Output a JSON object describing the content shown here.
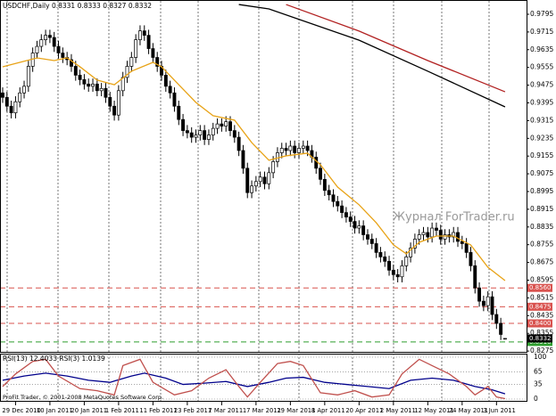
{
  "chart_data": [
    {
      "type": "candlestick",
      "title": "USDCHF,Daily 0.8331 0.8333 0.8327 0.8332",
      "open": [
        0.944,
        0.942,
        0.938,
        0.935,
        0.94,
        0.944,
        0.947,
        0.956,
        0.962,
        0.965,
        0.968,
        0.97,
        0.969,
        0.965,
        0.962,
        0.96,
        0.959,
        0.956,
        0.952,
        0.95,
        0.948,
        0.947,
        0.948,
        0.945,
        0.946,
        0.942,
        0.938,
        0.934,
        0.945,
        0.951,
        0.956,
        0.96,
        0.968,
        0.972,
        0.97,
        0.964,
        0.96,
        0.956,
        0.952,
        0.947,
        0.944,
        0.938,
        0.932,
        0.927,
        0.926,
        0.924,
        0.925,
        0.927,
        0.923,
        0.925,
        0.928,
        0.93,
        0.929,
        0.931,
        0.927,
        0.924,
        0.918,
        0.91,
        0.899,
        0.902,
        0.904,
        0.906,
        0.903,
        0.908,
        0.913,
        0.917,
        0.919,
        0.918,
        0.92,
        0.917,
        0.919,
        0.92,
        0.918,
        0.915,
        0.91,
        0.905,
        0.9,
        0.898,
        0.895,
        0.893,
        0.89,
        0.888,
        0.886,
        0.883,
        0.884,
        0.88,
        0.878,
        0.876,
        0.872,
        0.87,
        0.868,
        0.864,
        0.862,
        0.861,
        0.866,
        0.87,
        0.874,
        0.878,
        0.88,
        0.881,
        0.879,
        0.883,
        0.882,
        0.878,
        0.88,
        0.879,
        0.881,
        0.877,
        0.876,
        0.872,
        0.866,
        0.856,
        0.85,
        0.848,
        0.852,
        0.844,
        0.84,
        0.8331
      ],
      "high": [
        0.9465,
        0.9445,
        0.9405,
        0.9425,
        0.9465,
        0.9495,
        0.9585,
        0.9645,
        0.9675,
        0.9705,
        0.9725,
        0.9725,
        0.9715,
        0.9675,
        0.9645,
        0.9625,
        0.9615,
        0.9585,
        0.9545,
        0.9525,
        0.9505,
        0.9505,
        0.9505,
        0.9485,
        0.9485,
        0.9445,
        0.9405,
        0.9475,
        0.9535,
        0.9585,
        0.9625,
        0.9705,
        0.9745,
        0.9745,
        0.9725,
        0.9665,
        0.9625,
        0.9585,
        0.9545,
        0.9495,
        0.9465,
        0.9405,
        0.9345,
        0.9295,
        0.9285,
        0.9275,
        0.9295,
        0.9295,
        0.9275,
        0.9305,
        0.9325,
        0.9325,
        0.9335,
        0.9335,
        0.9295,
        0.9265,
        0.9205,
        0.9125,
        0.9045,
        0.9065,
        0.9085,
        0.9085,
        0.9105,
        0.9155,
        0.9195,
        0.9215,
        0.9215,
        0.9225,
        0.9225,
        0.9215,
        0.9225,
        0.9225,
        0.9205,
        0.9175,
        0.9125,
        0.9075,
        0.9025,
        0.9005,
        0.8975,
        0.8955,
        0.8925,
        0.8905,
        0.8885,
        0.8865,
        0.8865,
        0.8825,
        0.8805,
        0.8785,
        0.8745,
        0.8725,
        0.8705,
        0.8665,
        0.8645,
        0.8685,
        0.8725,
        0.8765,
        0.8805,
        0.8825,
        0.8835,
        0.8835,
        0.8855,
        0.8855,
        0.8845,
        0.8825,
        0.8825,
        0.8835,
        0.8835,
        0.8795,
        0.8785,
        0.8745,
        0.8685,
        0.8585,
        0.8525,
        0.8545,
        0.8545,
        0.8465,
        0.8425,
        0.8333
      ],
      "low": [
        0.9395,
        0.9355,
        0.9325,
        0.9325,
        0.9375,
        0.9415,
        0.9445,
        0.9535,
        0.9595,
        0.9625,
        0.9655,
        0.9665,
        0.9625,
        0.9595,
        0.9575,
        0.9565,
        0.9535,
        0.9495,
        0.9475,
        0.9455,
        0.9445,
        0.9445,
        0.9425,
        0.9425,
        0.9395,
        0.9355,
        0.9315,
        0.9315,
        0.9425,
        0.9485,
        0.9535,
        0.9575,
        0.9655,
        0.9675,
        0.9615,
        0.9575,
        0.9535,
        0.9495,
        0.9445,
        0.9415,
        0.9355,
        0.9295,
        0.9245,
        0.9235,
        0.9215,
        0.9215,
        0.9225,
        0.9205,
        0.9205,
        0.9225,
        0.9255,
        0.9265,
        0.9265,
        0.9245,
        0.9215,
        0.9155,
        0.9075,
        0.8965,
        0.8965,
        0.8995,
        0.9015,
        0.9005,
        0.9005,
        0.9055,
        0.9105,
        0.9145,
        0.9155,
        0.9155,
        0.9145,
        0.9145,
        0.9165,
        0.9155,
        0.9125,
        0.9075,
        0.9025,
        0.8975,
        0.8955,
        0.8925,
        0.8905,
        0.8875,
        0.8855,
        0.8835,
        0.8805,
        0.8805,
        0.8775,
        0.8755,
        0.8735,
        0.8695,
        0.8675,
        0.8655,
        0.8615,
        0.8595,
        0.8585,
        0.8585,
        0.8635,
        0.8675,
        0.8715,
        0.8755,
        0.8775,
        0.8765,
        0.8765,
        0.8795,
        0.8755,
        0.8755,
        0.8765,
        0.8765,
        0.8745,
        0.8735,
        0.8695,
        0.8635,
        0.8535,
        0.8475,
        0.8455,
        0.8455,
        0.8415,
        0.8375,
        0.8325,
        0.8327
      ],
      "close": [
        0.942,
        0.938,
        0.935,
        0.94,
        0.944,
        0.947,
        0.956,
        0.962,
        0.965,
        0.968,
        0.97,
        0.969,
        0.965,
        0.962,
        0.96,
        0.959,
        0.956,
        0.952,
        0.95,
        0.948,
        0.947,
        0.948,
        0.945,
        0.946,
        0.942,
        0.938,
        0.934,
        0.945,
        0.951,
        0.956,
        0.96,
        0.968,
        0.972,
        0.97,
        0.964,
        0.96,
        0.956,
        0.952,
        0.947,
        0.944,
        0.938,
        0.932,
        0.927,
        0.926,
        0.924,
        0.925,
        0.927,
        0.923,
        0.925,
        0.928,
        0.93,
        0.929,
        0.931,
        0.927,
        0.924,
        0.918,
        0.91,
        0.899,
        0.902,
        0.904,
        0.906,
        0.903,
        0.908,
        0.913,
        0.917,
        0.919,
        0.918,
        0.92,
        0.917,
        0.919,
        0.92,
        0.918,
        0.915,
        0.91,
        0.905,
        0.9,
        0.898,
        0.895,
        0.893,
        0.89,
        0.888,
        0.886,
        0.883,
        0.884,
        0.88,
        0.878,
        0.876,
        0.872,
        0.87,
        0.868,
        0.864,
        0.862,
        0.861,
        0.866,
        0.87,
        0.874,
        0.878,
        0.88,
        0.881,
        0.879,
        0.883,
        0.882,
        0.878,
        0.88,
        0.879,
        0.881,
        0.877,
        0.876,
        0.872,
        0.866,
        0.856,
        0.85,
        0.848,
        0.852,
        0.844,
        0.84,
        0.835,
        0.8332
      ],
      "lines": [
        {
          "color": "#e8a317",
          "x": [
            0,
            4,
            8,
            12,
            15,
            18,
            22,
            26,
            30,
            35,
            37,
            41,
            45,
            49,
            54,
            58,
            62,
            66,
            71,
            74,
            78,
            83,
            87,
            91,
            94,
            97,
            101,
            105,
            109,
            113,
            117
          ],
          "values": [
            0.9558,
            0.9578,
            0.9598,
            0.9586,
            0.9598,
            0.9558,
            0.9498,
            0.9477,
            0.9538,
            0.9578,
            0.9558,
            0.9477,
            0.9397,
            0.9337,
            0.9317,
            0.9216,
            0.9136,
            0.9156,
            0.9168,
            0.9116,
            0.9015,
            0.8935,
            0.8854,
            0.8754,
            0.8714,
            0.8766,
            0.8794,
            0.8794,
            0.8754,
            0.8653,
            0.8593
          ]
        },
        {
          "color": "#b22222",
          "x": [
            66,
            83,
            99,
            117
          ],
          "values": [
            0.9839,
            0.9719,
            0.9586,
            0.9445
          ]
        },
        {
          "color": "#000000",
          "x": [
            55,
            62,
            83,
            99,
            117
          ],
          "values": [
            0.9839,
            0.9819,
            0.9678,
            0.9538,
            0.9377
          ]
        }
      ],
      "hlines": [
        {
          "value": 0.856,
          "label": "0.8560",
          "color": "#d9534f"
        },
        {
          "value": 0.8475,
          "label": "0.8475",
          "color": "#d9534f"
        },
        {
          "value": 0.84,
          "label": "0.8400",
          "color": "#d9534f"
        },
        {
          "value": 0.8316,
          "label": "0.8316",
          "color": "#2e9e2e"
        }
      ],
      "current": {
        "value": 0.8332,
        "label": "0.8332",
        "color": "#000000"
      },
      "ylim": [
        0.82714,
        0.98392
      ],
      "yticks": [
        0.9795,
        0.9715,
        0.9635,
        0.9555,
        0.9475,
        0.9395,
        0.9315,
        0.9235,
        0.9155,
        0.9075,
        0.8995,
        0.8915,
        0.8835,
        0.8755,
        0.8675,
        0.8595,
        0.8515,
        0.8435,
        0.8355,
        0.8275
      ],
      "xlim": [
        -0.62,
        122
      ],
      "xticks": [
        {
          "value": 3,
          "label": "29 Dec 2010"
        },
        {
          "value": 11,
          "label": "10 Jan 2011"
        },
        {
          "value": 19,
          "label": "20 Jan 2011"
        },
        {
          "value": 27,
          "label": "1 Feb 2011"
        },
        {
          "value": 35,
          "label": "11 Feb 2011"
        },
        {
          "value": 43,
          "label": "23 Feb 2011"
        },
        {
          "value": 51,
          "label": "7 Mar 2011"
        },
        {
          "value": 59,
          "label": "17 Mar 2011"
        },
        {
          "value": 67,
          "label": "29 Mar 2011"
        },
        {
          "value": 75,
          "label": "8 Apr 2011"
        },
        {
          "value": 83,
          "label": "20 Apr 2011"
        },
        {
          "value": 91,
          "label": "2 May 2011"
        },
        {
          "value": 99,
          "label": "12 May 2011"
        },
        {
          "value": 107,
          "label": "24 May 2011"
        },
        {
          "value": 115,
          "label": "3 Jun 2011"
        }
      ],
      "watermark": "Журнал ForTrader.ru"
    },
    {
      "type": "line",
      "title": "RSI(13) 12.4033  RSI(3) 1.0139",
      "footer": "ProFit Trader, © 2001-2008 MetaQuotes Software Corp.",
      "series": [
        {
          "color": "#00008b",
          "x": [
            0,
            5,
            10,
            15,
            20,
            25,
            30,
            33,
            38,
            42,
            47,
            52,
            57,
            62,
            66,
            70,
            75,
            80,
            85,
            90,
            95,
            100,
            105,
            110,
            114,
            117
          ],
          "values": [
            45,
            55,
            62,
            55,
            45,
            40,
            55,
            62,
            50,
            35,
            38,
            42,
            30,
            40,
            50,
            52,
            40,
            35,
            30,
            25,
            45,
            50,
            45,
            30,
            22,
            12.4033
          ]
        },
        {
          "color": "#c0504d",
          "x": [
            0,
            3,
            7,
            10,
            13,
            18,
            22,
            26,
            28,
            32,
            35,
            40,
            44,
            48,
            52,
            55,
            57,
            60,
            64,
            67,
            70,
            74,
            78,
            82,
            86,
            90,
            93,
            97,
            100,
            104,
            108,
            110,
            113,
            115,
            117
          ],
          "values": [
            30,
            60,
            90,
            95,
            55,
            25,
            20,
            10,
            80,
            95,
            40,
            10,
            20,
            50,
            70,
            30,
            5,
            40,
            85,
            90,
            80,
            15,
            10,
            20,
            5,
            10,
            60,
            95,
            80,
            60,
            30,
            10,
            30,
            5,
            1.0139
          ]
        }
      ],
      "ylim": [
        0,
        100
      ],
      "yticks": [
        100,
        65,
        35,
        0
      ],
      "xlim": [
        -0.62,
        122
      ]
    }
  ]
}
